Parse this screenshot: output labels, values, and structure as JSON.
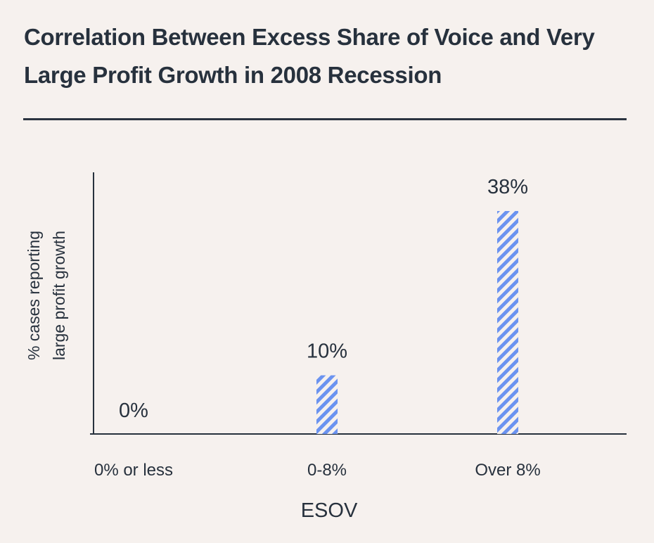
{
  "chart_data": {
    "type": "bar",
    "title": "Correlation Between Excess Share of Voice and Very Large Profit Growth in 2008 Recession",
    "xlabel": "ESOV",
    "ylabel": [
      "% cases reporting",
      "large profit growth"
    ],
    "categories": [
      "0% or less",
      "0-8%",
      "Over 8%"
    ],
    "values": [
      0,
      10,
      38
    ],
    "data_labels": [
      "0%",
      "10%",
      "38%"
    ],
    "ylim": [
      0,
      38
    ],
    "grid": false,
    "bar_color": "#6b93f0",
    "bar_pattern": "diagonal-hatch"
  }
}
